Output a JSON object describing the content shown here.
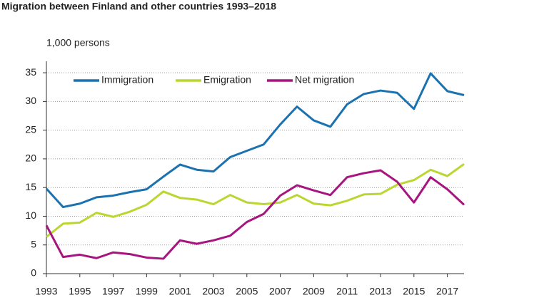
{
  "chart_data": {
    "type": "line",
    "title": "Migration between Finland and other countries 1993–2018",
    "y_label": "1,000 persons",
    "x": [
      1993,
      1994,
      1995,
      1996,
      1997,
      1998,
      1999,
      2000,
      2001,
      2002,
      2003,
      2004,
      2005,
      2006,
      2007,
      2008,
      2009,
      2010,
      2011,
      2012,
      2013,
      2014,
      2015,
      2016,
      2017,
      2018
    ],
    "series": [
      {
        "name": "Immigration",
        "color": "#1a72b0",
        "values": [
          14.8,
          11.6,
          12.2,
          13.3,
          13.6,
          14.2,
          14.7,
          16.9,
          19.0,
          18.1,
          17.8,
          20.3,
          21.4,
          22.5,
          26.0,
          29.1,
          26.7,
          25.6,
          29.5,
          31.3,
          31.9,
          31.5,
          28.7,
          34.9,
          31.8,
          31.1
        ]
      },
      {
        "name": "Emigration",
        "color": "#bcd631",
        "values": [
          6.4,
          8.7,
          8.9,
          10.6,
          9.9,
          10.8,
          12.0,
          14.3,
          13.2,
          12.9,
          12.1,
          13.7,
          12.4,
          12.1,
          12.4,
          13.7,
          12.2,
          11.9,
          12.7,
          13.8,
          13.9,
          15.5,
          16.3,
          18.1,
          17.0,
          19.1
        ]
      },
      {
        "name": "Net migration",
        "color": "#a7157f",
        "values": [
          8.4,
          2.9,
          3.3,
          2.7,
          3.7,
          3.4,
          2.8,
          2.6,
          5.8,
          5.2,
          5.8,
          6.6,
          9.0,
          10.4,
          13.6,
          15.4,
          14.5,
          13.7,
          16.8,
          17.5,
          18.0,
          16.0,
          12.4,
          16.8,
          14.7,
          12.0
        ]
      }
    ],
    "xlim": [
      1993,
      2018
    ],
    "xticks": [
      1993,
      1995,
      1997,
      1999,
      2001,
      2003,
      2005,
      2007,
      2009,
      2011,
      2013,
      2015,
      2017
    ],
    "ylim": [
      0,
      37
    ],
    "yticks": [
      0,
      5,
      10,
      15,
      20,
      25,
      30,
      35
    ],
    "grid": true,
    "legend": "top"
  }
}
